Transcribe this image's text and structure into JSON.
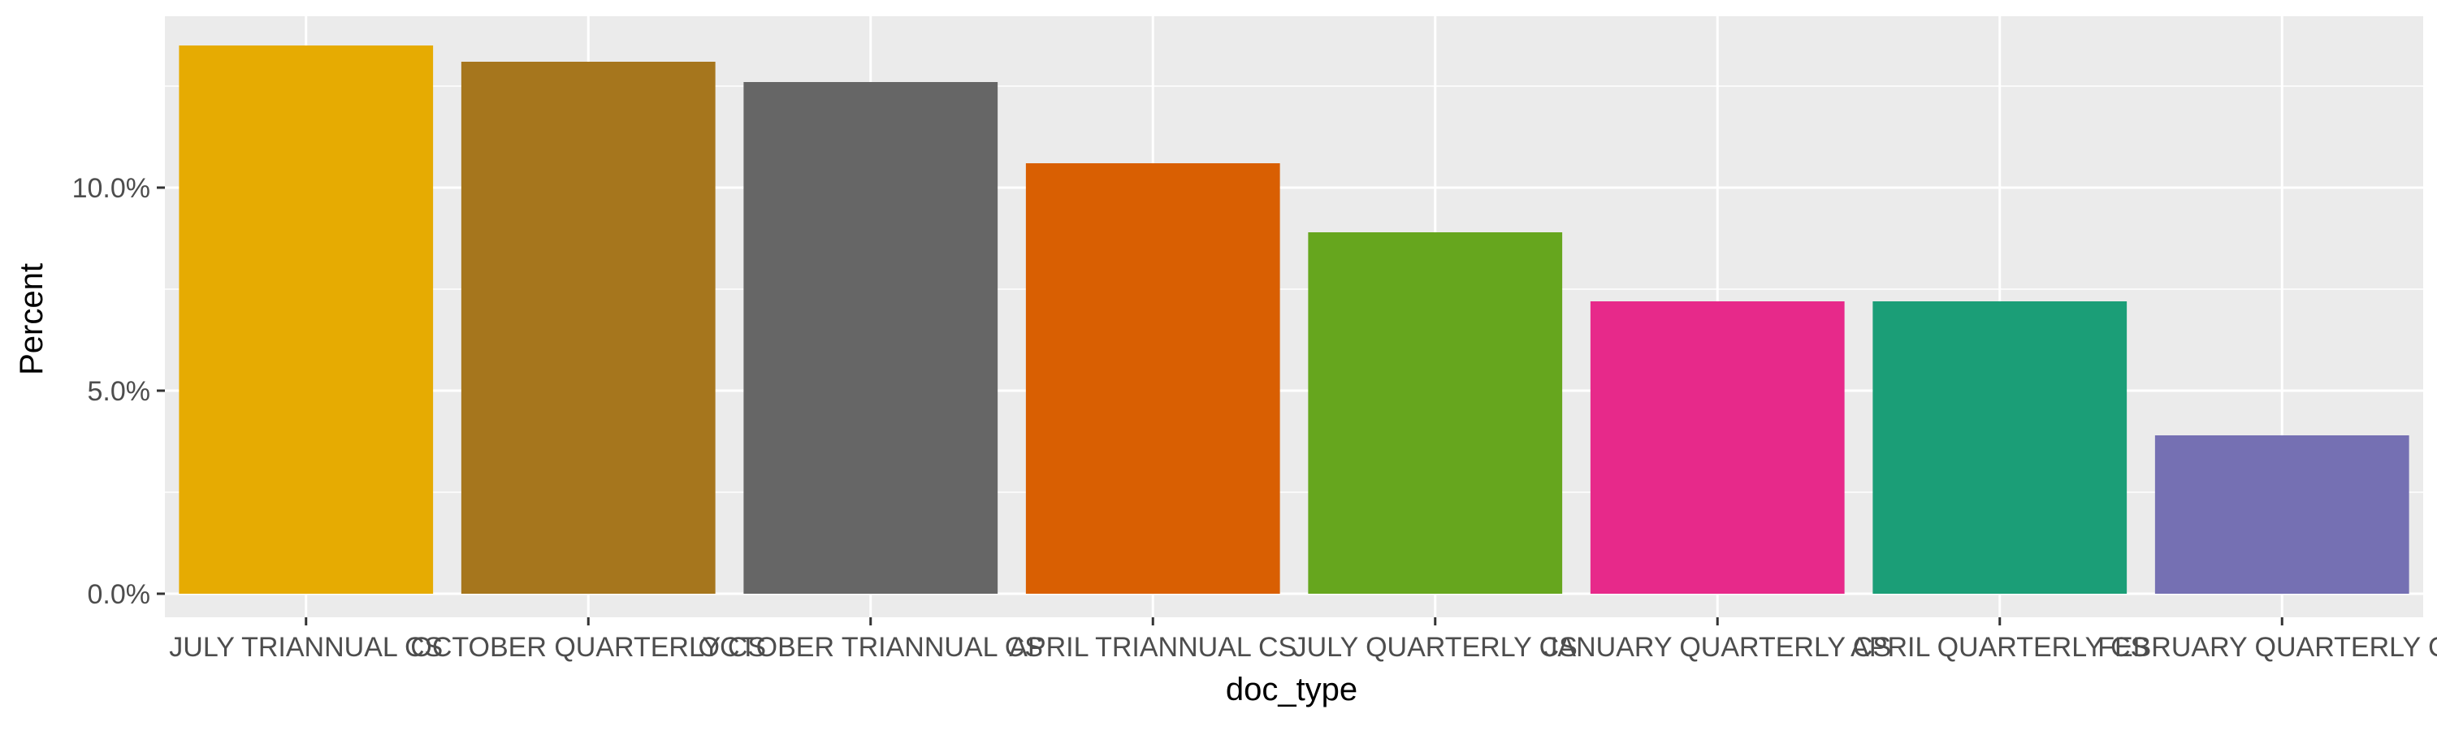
{
  "chart_data": {
    "type": "bar",
    "title": "",
    "xlabel": "doc_type",
    "ylabel": "Percent",
    "categories": [
      "JULY TRIANNUAL CS",
      "OCTOBER QUARTERLY CS",
      "OCTOBER TRIANNUAL CS",
      "APRIL TRIANNUAL CS",
      "JULY QUARTERLY CS",
      "JANUARY QUARTERLY CS",
      "APRIL QUARTERLY CS",
      "FEBRUARY QUARTERLY CS"
    ],
    "values": [
      13.5,
      13.1,
      12.6,
      10.6,
      8.9,
      7.2,
      7.2,
      3.9
    ],
    "colors": [
      "#E6AB02",
      "#A6761D",
      "#666666",
      "#D95F02",
      "#66A61E",
      "#E7298A",
      "#1B9E77",
      "#7570B3"
    ],
    "ylim": [
      0,
      13.5
    ],
    "y_ticks": [
      0,
      5,
      10
    ],
    "y_tick_labels": [
      "0.0%",
      "5.0%",
      "10.0%"
    ],
    "grid": true,
    "legend": "none",
    "background_color": "#EBEBEB",
    "grid_color": "#FFFFFF"
  }
}
